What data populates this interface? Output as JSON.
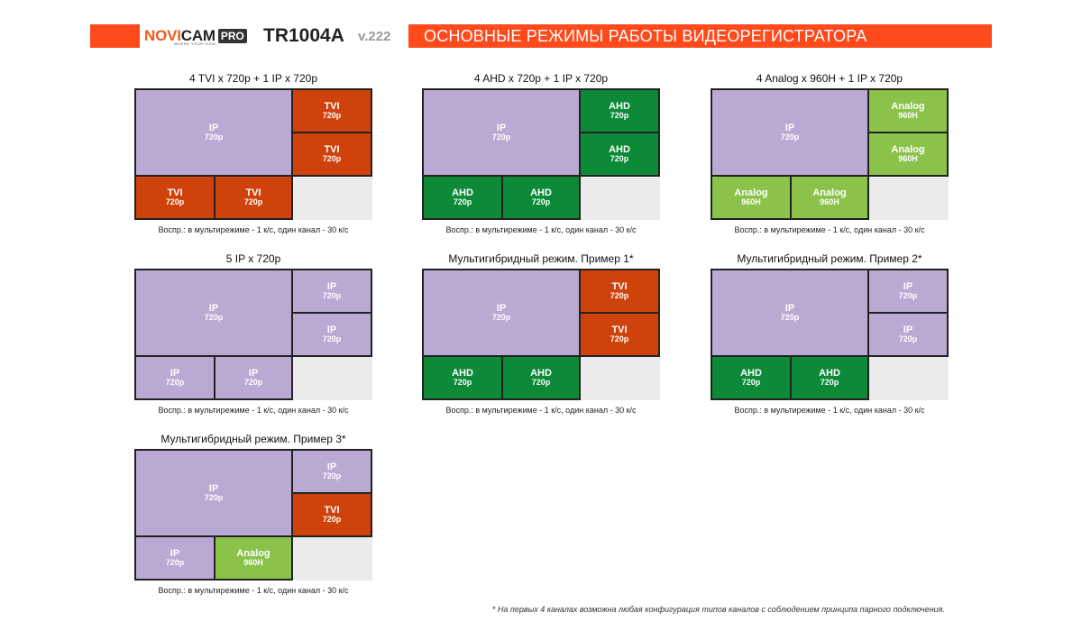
{
  "header": {
    "brand_nov": "NOVI",
    "brand_cam": "CAM",
    "brand_pro": "PRO",
    "tagline": "WHERE YOUR VIEW",
    "model": "TR1004A",
    "version": "v.222",
    "title": "ОСНОВНЫЕ РЕЖИМЫ РАБОТЫ ВИДЕОРЕГИСТРАТОРА",
    "accent_color": "#ff4a1c"
  },
  "caption": "Воспр.: в мультирежиме - 1 к/с, один канал - 30 к/с",
  "footnote": "* На первых 4 каналах возможна любая конфигурация типов каналов с соблюдением принципа парного подключения.",
  "colors": {
    "ip": "#baa9d2",
    "tvi": "#d0420b",
    "ahd": "#0c8a37",
    "analog": "#8bc34a",
    "empty": "#ebebeb"
  },
  "panels": [
    {
      "title": "4 TVI x 720p + 1 IP x 720p",
      "cells": [
        {
          "type": "IP",
          "res": "720p"
        },
        {
          "type": "TVI",
          "res": "720p"
        },
        {
          "type": "TVI",
          "res": "720p"
        },
        {
          "type": "TVI",
          "res": "720p"
        },
        {
          "type": "TVI",
          "res": "720p"
        }
      ]
    },
    {
      "title": "4 AHD x 720p + 1 IP x 720p",
      "cells": [
        {
          "type": "IP",
          "res": "720p"
        },
        {
          "type": "AHD",
          "res": "720p"
        },
        {
          "type": "AHD",
          "res": "720p"
        },
        {
          "type": "AHD",
          "res": "720p"
        },
        {
          "type": "AHD",
          "res": "720p"
        }
      ]
    },
    {
      "title": "4 Analog x 960H + 1 IP x 720p",
      "cells": [
        {
          "type": "IP",
          "res": "720p"
        },
        {
          "type": "Analog",
          "res": "960H"
        },
        {
          "type": "Analog",
          "res": "960H"
        },
        {
          "type": "Analog",
          "res": "960H"
        },
        {
          "type": "Analog",
          "res": "960H"
        }
      ]
    },
    {
      "title": "5 IP x 720p",
      "cells": [
        {
          "type": "IP",
          "res": "720p"
        },
        {
          "type": "IP",
          "res": "720p"
        },
        {
          "type": "IP",
          "res": "720p"
        },
        {
          "type": "IP",
          "res": "720p"
        },
        {
          "type": "IP",
          "res": "720p"
        }
      ]
    },
    {
      "title": "Мультигибридный режим. Пример 1*",
      "cells": [
        {
          "type": "IP",
          "res": "720p"
        },
        {
          "type": "TVI",
          "res": "720p"
        },
        {
          "type": "TVI",
          "res": "720p"
        },
        {
          "type": "AHD",
          "res": "720p"
        },
        {
          "type": "AHD",
          "res": "720p"
        }
      ]
    },
    {
      "title": "Мультигибридный режим. Пример 2*",
      "cells": [
        {
          "type": "IP",
          "res": "720p"
        },
        {
          "type": "IP",
          "res": "720p"
        },
        {
          "type": "IP",
          "res": "720p"
        },
        {
          "type": "AHD",
          "res": "720p"
        },
        {
          "type": "AHD",
          "res": "720p"
        }
      ]
    },
    {
      "title": "Мультигибридный режим. Пример 3*",
      "cells": [
        {
          "type": "IP",
          "res": "720p"
        },
        {
          "type": "IP",
          "res": "720p"
        },
        {
          "type": "TVI",
          "res": "720p"
        },
        {
          "type": "IP",
          "res": "720p"
        },
        {
          "type": "Analog",
          "res": "960H"
        }
      ]
    }
  ]
}
